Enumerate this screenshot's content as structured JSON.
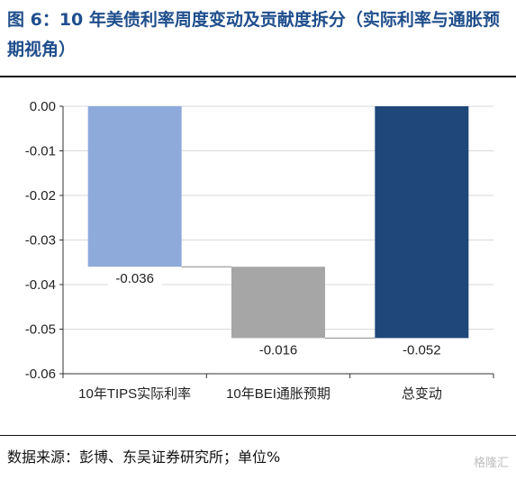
{
  "header": {
    "title": "图 6：10 年美债利率周度变动及贡献度拆分（实际利率与通胀预期视角）"
  },
  "footer": {
    "source": "数据来源：彭博、东吴证券研究所；单位%",
    "watermark": "格隆汇"
  },
  "chart_data": {
    "type": "bar",
    "subtype": "waterfall",
    "categories": [
      "10年TIPS实际利率",
      "10年BEI通胀预期",
      "总变动"
    ],
    "values": [
      -0.036,
      -0.016,
      -0.052
    ],
    "data_labels": [
      "-0.036",
      "-0.016",
      "-0.052"
    ],
    "waterfall_start": [
      0,
      -0.036,
      0
    ],
    "colors": [
      "#8eaadb",
      "#a6a6a6",
      "#1f477a"
    ],
    "ylim": [
      -0.06,
      0.0
    ],
    "yticks": [
      0.0,
      -0.01,
      -0.02,
      -0.03,
      -0.04,
      -0.05,
      -0.06
    ],
    "ytick_labels": [
      "0.00",
      "-0.01",
      "-0.02",
      "-0.03",
      "-0.04",
      "-0.05",
      "-0.06"
    ],
    "xlabel": "",
    "ylabel": "",
    "grid": true,
    "legend": "none"
  }
}
